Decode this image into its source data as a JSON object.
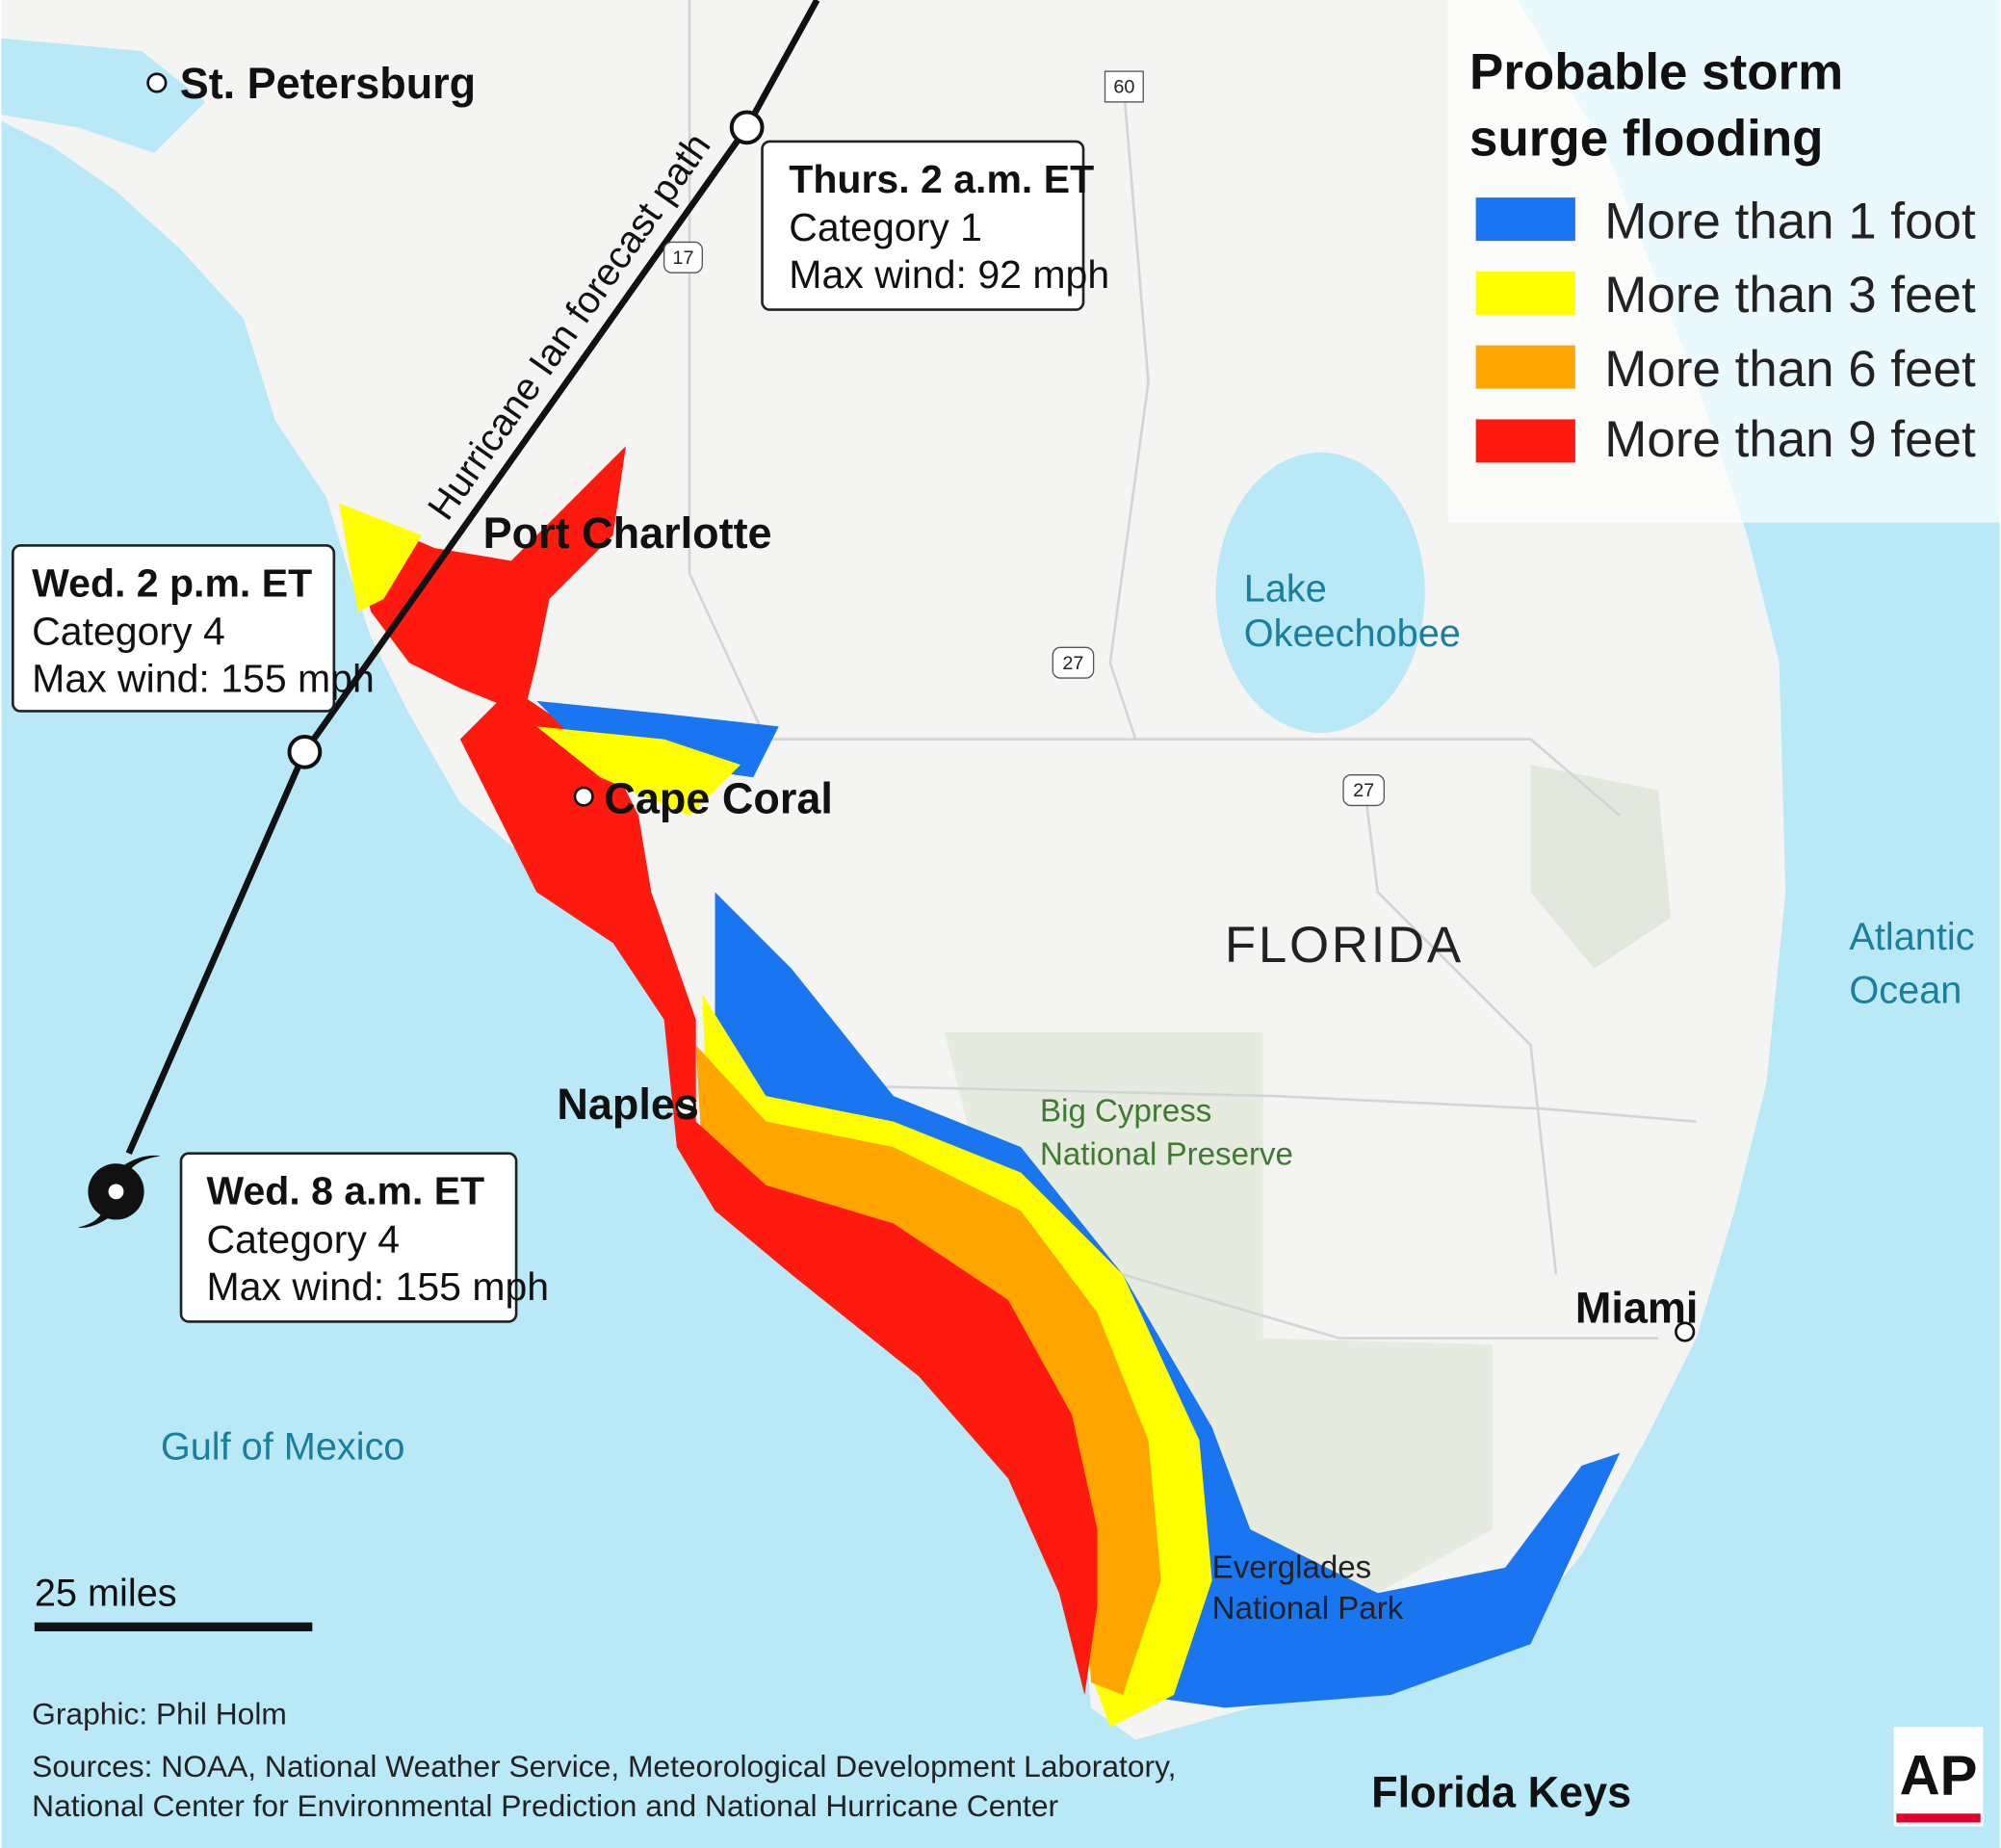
{
  "legend": {
    "title_line1": "Probable storm",
    "title_line2": "surge flooding",
    "items": [
      {
        "label": "More than 1 foot",
        "color": "#1a75f0"
      },
      {
        "label": "More than 3 feet",
        "color": "#ffff00"
      },
      {
        "label": "More than 6 feet",
        "color": "#ffa500"
      },
      {
        "label": "More than 9 feet",
        "color": "#ff1a10"
      }
    ]
  },
  "colors": {
    "ocean": "#b9e9f7",
    "land": "#f4f4f2",
    "preserve": "#e6ebdf",
    "track": "#111111"
  },
  "track_label": "Hurricane Ian forecast path",
  "callouts": [
    {
      "time": "Thurs. 2 a.m. ET",
      "category": "Category 1",
      "wind": "Max wind: 92 mph"
    },
    {
      "time": "Wed. 2 p.m. ET",
      "category": "Category 4",
      "wind": "Max wind: 155 mph"
    },
    {
      "time": "Wed. 8 a.m. ET",
      "category": "Category 4",
      "wind": "Max wind: 155 mph"
    }
  ],
  "cities": [
    "St. Petersburg",
    "Port Charlotte",
    "Cape Coral",
    "Naples",
    "Miami",
    "Florida Keys"
  ],
  "state_label": "FLORIDA",
  "water_labels": {
    "lake_1": "Lake",
    "lake_2": "Okeechobee",
    "gulf": "Gulf of Mexico",
    "atlantic_1": "Atlantic",
    "atlantic_2": "Ocean"
  },
  "park_labels": {
    "cypress_1": "Big Cypress",
    "cypress_2": "National Preserve",
    "everglades_1": "Everglades",
    "everglades_2": "National Park"
  },
  "highway_shields": [
    "60",
    "17",
    "27",
    "27"
  ],
  "scale_label": "25 miles",
  "credits": {
    "graphic": "Graphic: Phil Holm",
    "sources_1": "Sources: NOAA, National Weather Service, Meteorological Development Laboratory,",
    "sources_2": "National Center for Environmental Prediction and National Hurricane Center"
  },
  "logo": "AP"
}
